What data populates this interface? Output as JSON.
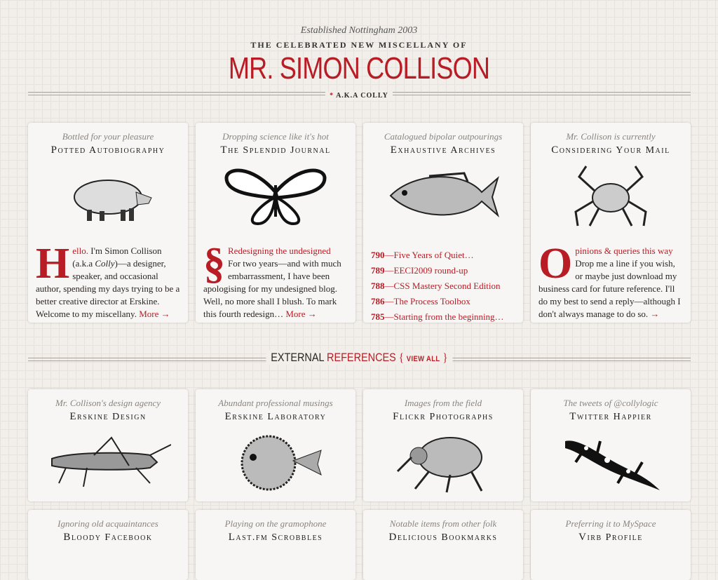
{
  "header": {
    "established": "Established Nottingham 2003",
    "tagline": "THE CELEBRATED NEW MISCELLANY OF",
    "name": "MR. SIMON COLLISON",
    "aka_star": "*",
    "aka": "A.K.A COLLY"
  },
  "top_cards": [
    {
      "subtitle": "Bottled for your pleasure",
      "title": "Potted Autobiography",
      "icon": "pig-illustration"
    },
    {
      "subtitle": "Dropping science like it's hot",
      "title": "The Splendid Journal",
      "icon": "butterfly-illustration"
    },
    {
      "subtitle": "Catalogued bipolar outpourings",
      "title": "Exhaustive Archives",
      "icon": "fish-illustration"
    },
    {
      "subtitle": "Mr. Collison is currently",
      "title": "Considering Your Mail",
      "icon": "crab-illustration"
    }
  ],
  "intro": {
    "drop": "H",
    "lead": "ello.",
    "text": " I'm Simon Collison (a.k.a ",
    "em": "Colly",
    "text2": ")—a designer, speaker, and occasional author, spending my days trying to be a better creative director at Erskine. Welcome to my miscellany. ",
    "more": "More →"
  },
  "journal": {
    "drop": "§",
    "headline": "Redesigning the undesigned",
    "text": "For two years—and with much embarrassment, I have been apologising for my undesigned blog. Well, no more shall I blush. To mark this fourth redesign… ",
    "more": "More →"
  },
  "archives": [
    {
      "num": "790",
      "title": "—Five Years of Quiet…"
    },
    {
      "num": "789",
      "title": "—EECI2009 round-up"
    },
    {
      "num": "788",
      "title": "—CSS Mastery Second Edition"
    },
    {
      "num": "786",
      "title": "—The Process Toolbox"
    },
    {
      "num": "785",
      "title": "—Starting from the beginning…"
    }
  ],
  "mail": {
    "drop": "O",
    "lead": "pinions & queries this way",
    "text": "Drop me a line if you wish, or maybe just download my business card for future reference. I'll do my best to send a reply—although I don't always manage to do so. ",
    "more": "→"
  },
  "external": {
    "label1": "EXTERNAL",
    "label2": "REFERENCES",
    "brace_open": "{",
    "view_all": "VIEW ALL",
    "brace_close": "}"
  },
  "ref_cards": [
    {
      "subtitle": "Mr. Collison's design agency",
      "title": "Erskine Design",
      "icon": "grasshopper-illustration"
    },
    {
      "subtitle": "Abundant professional musings",
      "title": "Erskine Laboratory",
      "icon": "pufferfish-illustration"
    },
    {
      "subtitle": "Images from the field",
      "title": "Flickr Photographs",
      "icon": "flea-illustration"
    },
    {
      "subtitle": "The tweets of @collylogic",
      "title": "Twitter Happier",
      "icon": "salamander-illustration"
    }
  ],
  "more_cards": [
    {
      "subtitle": "Ignoring old acquaintances",
      "title": "Bloody Facebook"
    },
    {
      "subtitle": "Playing on the gramophone",
      "title": "Last.fm Scrobbles"
    },
    {
      "subtitle": "Notable items from other folk",
      "title": "Delicious Bookmarks"
    },
    {
      "subtitle": "Preferring it to MySpace",
      "title": "Virb Profile"
    }
  ],
  "colors": {
    "accent": "#b81c25",
    "background": "#f2efeb",
    "card": "#f8f6f4"
  }
}
